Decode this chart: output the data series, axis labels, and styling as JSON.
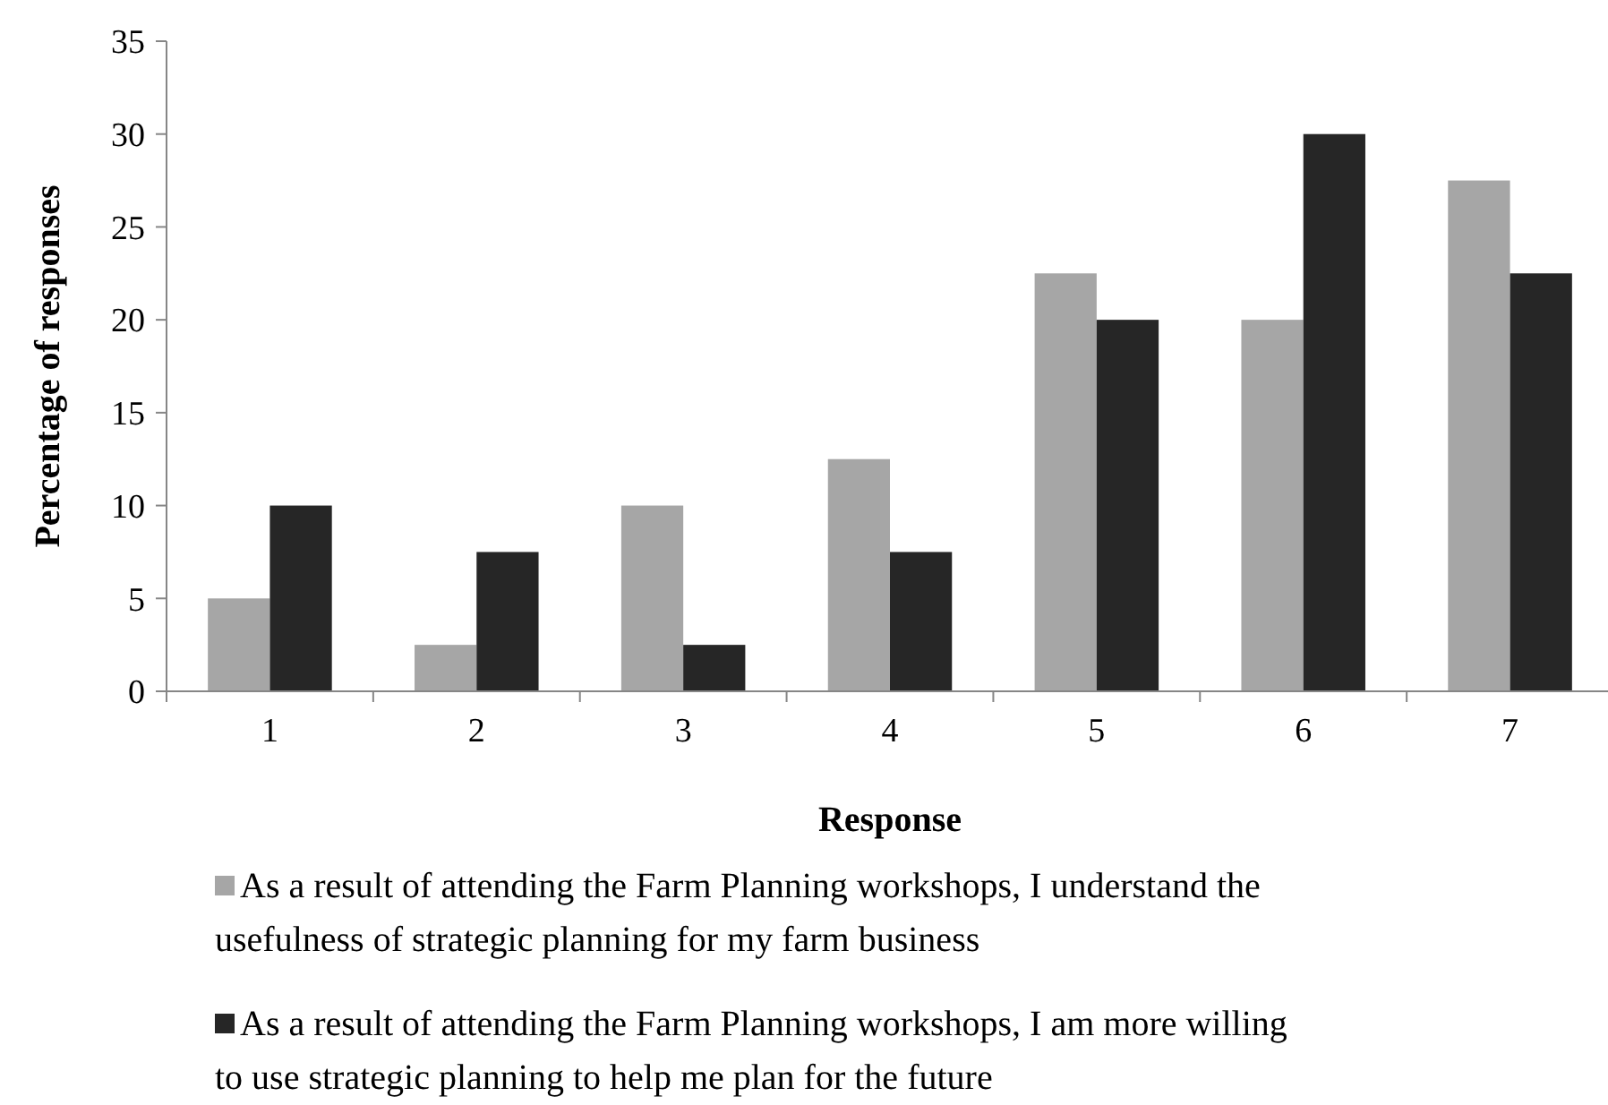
{
  "chart_data": {
    "type": "bar",
    "xlabel": "Response",
    "ylabel": "Percentage of responses",
    "categories": [
      "1",
      "2",
      "3",
      "4",
      "5",
      "6",
      "7"
    ],
    "series": [
      {
        "name": "As a result of attending the Farm Planning workshops, I understand the usefulness of strategic planning for my farm business",
        "color": "#a6a6a6",
        "values": [
          5,
          2.5,
          10,
          12.5,
          22.5,
          20,
          27.5
        ]
      },
      {
        "name": "As a result of attending the Farm Planning workshops, I am more willing to use strategic planning to help me plan for the future",
        "color": "#262626",
        "values": [
          10,
          7.5,
          2.5,
          7.5,
          20,
          30,
          22.5
        ]
      }
    ],
    "ylim": [
      0,
      35
    ],
    "yticks": [
      0,
      5,
      10,
      15,
      20,
      25,
      30,
      35
    ],
    "legend": "bottom"
  }
}
